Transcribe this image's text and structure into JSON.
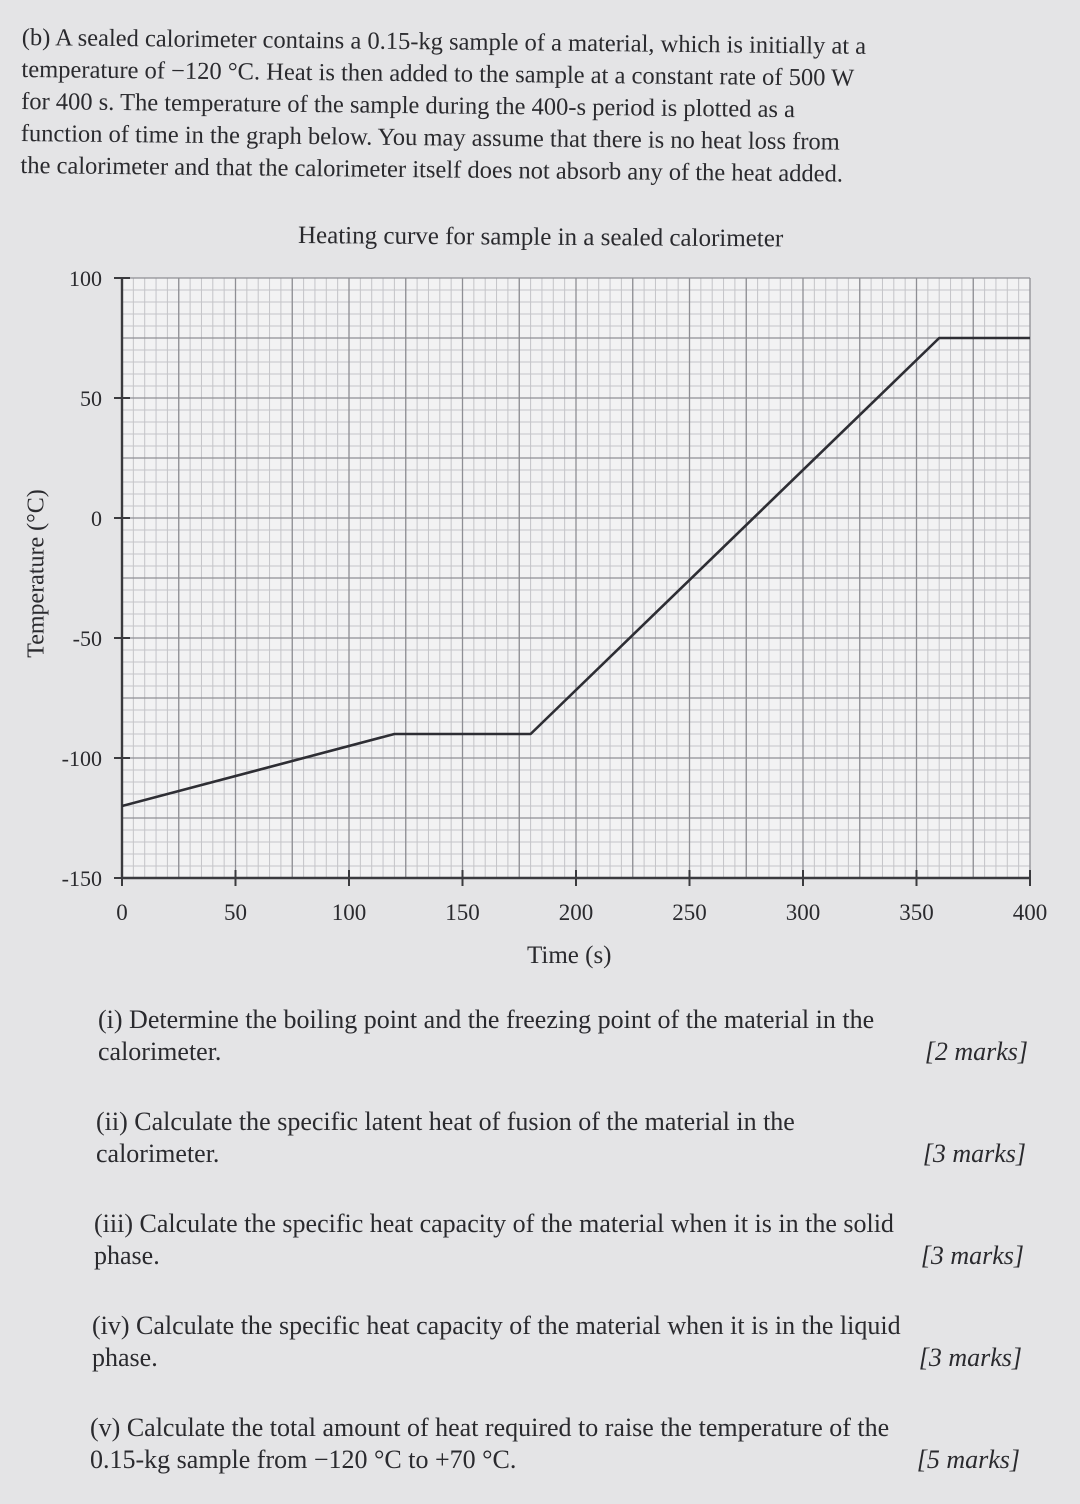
{
  "intro": {
    "lines": [
      "(b) A sealed calorimeter contains a 0.15-kg sample of a material, which is initially at a",
      "temperature of −120 °C.  Heat is then added to the sample at a constant rate of 500 W",
      "for 400 s.  The temperature of the sample during the 400-s period is plotted as a",
      "function of time in the graph below.  You may assume that there is no heat loss from",
      "the calorimeter and that the calorimeter itself does not absorb any of the heat added."
    ]
  },
  "chart_data": {
    "type": "line",
    "title": "Heating curve for sample in a sealed calorimeter",
    "xlabel": "Time (s)",
    "ylabel": "Temperature (°C)",
    "xlim": [
      0,
      400
    ],
    "ylim": [
      -150,
      100
    ],
    "xticks": [
      0,
      50,
      100,
      150,
      200,
      250,
      300,
      350,
      400
    ],
    "yticks": [
      100,
      50,
      0,
      -50,
      -100,
      -150
    ],
    "grid": true,
    "series": [
      {
        "x": [
          0,
          120,
          180,
          360,
          400
        ],
        "y": [
          -120,
          -90,
          -90,
          75,
          75
        ]
      }
    ]
  },
  "questions": [
    {
      "lines": [
        "(i) Determine the boiling point and the freezing point of the material in the",
        "calorimeter."
      ],
      "marks": "[2 marks]"
    },
    {
      "lines": [
        "(ii) Calculate the specific latent heat of fusion of the material in the",
        "calorimeter."
      ],
      "marks": "[3 marks]"
    },
    {
      "lines": [
        "(iii) Calculate the specific heat capacity of the material when it is in the solid",
        "phase."
      ],
      "marks": "[3 marks]"
    },
    {
      "lines": [
        "(iv) Calculate the specific heat capacity of the material when it is in the liquid",
        "phase."
      ],
      "marks": "[3 marks]"
    },
    {
      "lines": [
        "(v) Calculate the total amount of heat required to raise the temperature of the",
        "0.15-kg sample from −120 °C to +70 °C."
      ],
      "marks": "[5 marks]"
    }
  ]
}
